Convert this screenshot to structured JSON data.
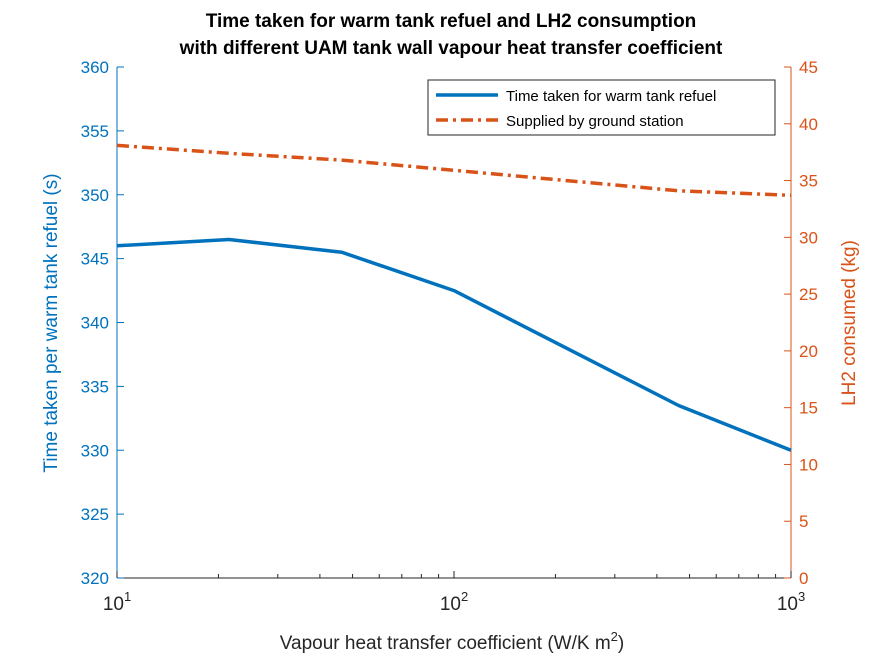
{
  "chart_data": {
    "type": "line",
    "title": [
      "Time taken for warm tank refuel and LH2 consumption",
      "with different UAM tank wall vapour heat transfer coefficient"
    ],
    "xlabel": {
      "text": "Vapour heat transfer coefficient (W/K m",
      "sup": "2",
      "close": ")"
    },
    "ylabel_left": "Time taken per warm tank refuel (s)",
    "ylabel_right": "LH2 consumed (kg)",
    "xscale": "log",
    "xlim": [
      10,
      1000
    ],
    "ylim_left": [
      320,
      360
    ],
    "ylim_right": [
      0,
      45
    ],
    "x_ticks": [
      {
        "value": 10,
        "base": "10",
        "exp": "1"
      },
      {
        "value": 100,
        "base": "10",
        "exp": "2"
      },
      {
        "value": 1000,
        "base": "10",
        "exp": "3"
      }
    ],
    "y_ticks_left": [
      "320",
      "325",
      "330",
      "335",
      "340",
      "345",
      "350",
      "355",
      "360"
    ],
    "y_ticks_right": [
      "0",
      "5",
      "10",
      "15",
      "20",
      "25",
      "30",
      "35",
      "40",
      "45"
    ],
    "legend_position": "top-right",
    "series": [
      {
        "name": "Time taken for warm tank refuel",
        "axis": "left",
        "color": "#0072BD",
        "style": "solid",
        "x": [
          10,
          21.5,
          46.4,
          100,
          464,
          1000
        ],
        "y": [
          346.0,
          346.5,
          345.5,
          342.5,
          333.5,
          330.0
        ]
      },
      {
        "name": "Supplied by ground station",
        "axis": "right",
        "color": "#D95319",
        "style": "dashdot",
        "x": [
          10,
          21.5,
          46.4,
          100,
          464,
          1000
        ],
        "y": [
          38.1,
          37.4,
          36.8,
          35.9,
          34.1,
          33.7
        ]
      }
    ]
  }
}
